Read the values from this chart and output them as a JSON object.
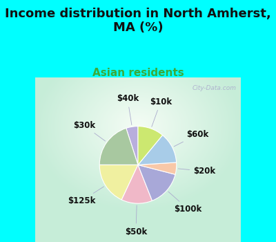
{
  "title": "Income distribution in North Amherst,\nMA (%)",
  "subtitle": "Asian residents",
  "title_color": "#111111",
  "subtitle_color": "#3aaa3a",
  "bg_color": "#00ffff",
  "chart_bg_color_center": "#f5fdf5",
  "chart_bg_color_edge": "#c8ecd8",
  "watermark": "City-Data.com",
  "slices": [
    {
      "label": "$40k",
      "value": 5,
      "color": "#b8aedd"
    },
    {
      "label": "$30k",
      "value": 20,
      "color": "#a8c8a0"
    },
    {
      "label": "$125k",
      "value": 18,
      "color": "#f0f0a0"
    },
    {
      "label": "$50k",
      "value": 13,
      "color": "#f0b8c8"
    },
    {
      "label": "$100k",
      "value": 15,
      "color": "#a8a8d8"
    },
    {
      "label": "$20k",
      "value": 5,
      "color": "#f8c8a8"
    },
    {
      "label": "$60k",
      "value": 13,
      "color": "#a8cce8"
    },
    {
      "label": "$10k",
      "value": 11,
      "color": "#cce870"
    }
  ],
  "startangle": 90,
  "label_fontsize": 8.5,
  "title_fontsize": 13,
  "subtitle_fontsize": 11
}
